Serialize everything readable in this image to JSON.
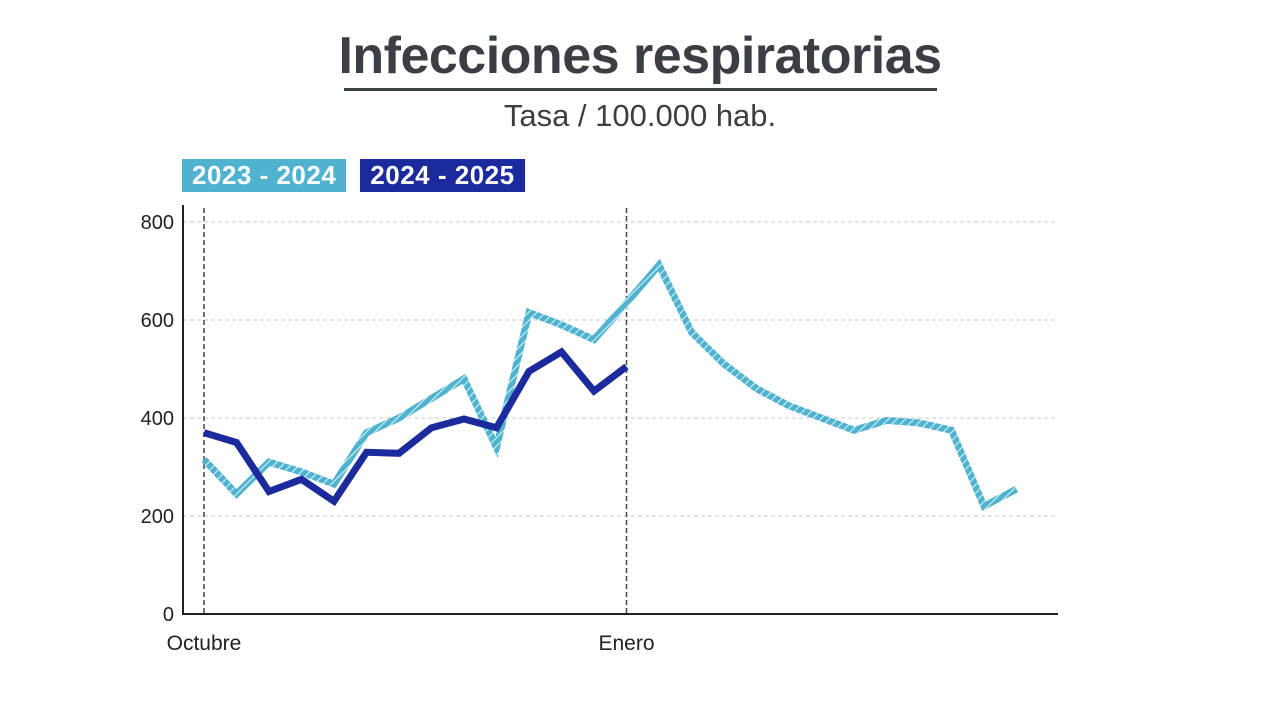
{
  "chart_data": {
    "type": "line",
    "title": "Infecciones respiratorias",
    "subtitle": "Tasa / 100.000 hab.",
    "ylim": [
      0,
      800
    ],
    "yticks": [
      "0",
      "200",
      "400",
      "600",
      "800"
    ],
    "x_axis_labels": [
      "Octubre",
      "Enero"
    ],
    "grid": "horizontal dashed",
    "legend_position": "top-left",
    "series": [
      {
        "name": "2023 - 2024",
        "color": "#4fb3cf",
        "style": "hatched",
        "values": [
          315,
          245,
          310,
          290,
          265,
          370,
          400,
          440,
          480,
          340,
          615,
          590,
          560,
          635,
          712,
          575,
          510,
          460,
          425,
          400,
          375,
          395,
          390,
          375,
          220,
          255
        ]
      },
      {
        "name": "2024 - 2025",
        "color": "#1b2a9c",
        "style": "solid",
        "values": [
          370,
          350,
          250,
          275,
          230,
          330,
          328,
          380,
          398,
          380,
          495,
          535,
          455,
          505
        ]
      }
    ]
  }
}
